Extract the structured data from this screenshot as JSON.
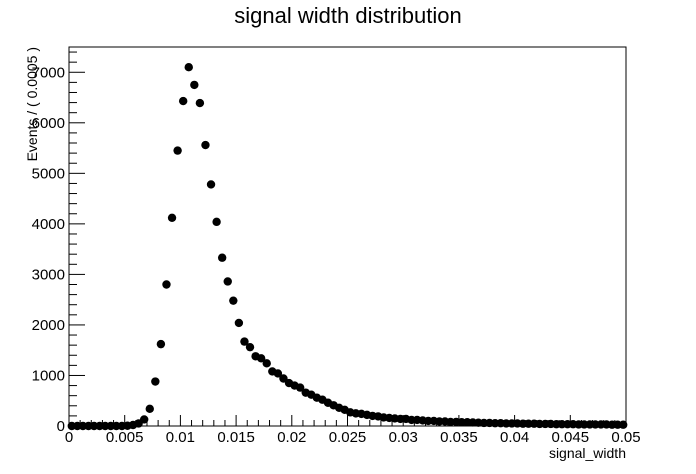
{
  "chart_data": {
    "type": "scatter",
    "title": "signal width distribution",
    "xlabel": "signal_width",
    "ylabel": "Events / ( 0.0005 )",
    "xlim": [
      0,
      0.05
    ],
    "ylim": [
      0,
      7500
    ],
    "x_ticks": [
      "0",
      "0.005",
      "0.01",
      "0.015",
      "0.02",
      "0.025",
      "0.03",
      "0.035",
      "0.04",
      "0.045",
      "0.05"
    ],
    "y_ticks": [
      "0",
      "1000",
      "2000",
      "3000",
      "4000",
      "5000",
      "6000",
      "7000"
    ],
    "grid": false,
    "marker_color": "#000000",
    "x": [
      0.00025,
      0.00075,
      0.00125,
      0.00175,
      0.00225,
      0.00275,
      0.00325,
      0.00375,
      0.00425,
      0.00475,
      0.00525,
      0.00575,
      0.00625,
      0.00675,
      0.00725,
      0.00775,
      0.00825,
      0.00875,
      0.00925,
      0.00975,
      0.01025,
      0.01075,
      0.01125,
      0.01175,
      0.01225,
      0.01275,
      0.01325,
      0.01375,
      0.01425,
      0.01475,
      0.01525,
      0.01575,
      0.01625,
      0.01675,
      0.01725,
      0.01775,
      0.01825,
      0.01875,
      0.01925,
      0.01975,
      0.02025,
      0.02075,
      0.02125,
      0.02175,
      0.02225,
      0.02275,
      0.02325,
      0.02375,
      0.02425,
      0.02475,
      0.02525,
      0.02575,
      0.02625,
      0.02675,
      0.02725,
      0.02775,
      0.02825,
      0.02875,
      0.02925,
      0.02975,
      0.03025,
      0.03075,
      0.03125,
      0.03175,
      0.03225,
      0.03275,
      0.03325,
      0.03375,
      0.03425,
      0.03475,
      0.03525,
      0.03575,
      0.03625,
      0.03675,
      0.03725,
      0.03775,
      0.03825,
      0.03875,
      0.03925,
      0.03975,
      0.04025,
      0.04075,
      0.04125,
      0.04175,
      0.04225,
      0.04275,
      0.04325,
      0.04375,
      0.04425,
      0.04475,
      0.04525,
      0.04575,
      0.04625,
      0.04675,
      0.04725,
      0.04775,
      0.04825,
      0.04875,
      0.04925,
      0.04975
    ],
    "y": [
      0,
      0,
      0,
      0,
      0,
      0,
      0,
      0,
      0,
      0,
      5,
      20,
      50,
      130,
      340,
      880,
      1620,
      2800,
      4120,
      5450,
      6430,
      7100,
      6750,
      6390,
      5560,
      4780,
      4040,
      3330,
      2860,
      2480,
      2040,
      1670,
      1560,
      1380,
      1340,
      1240,
      1080,
      1040,
      940,
      850,
      800,
      760,
      660,
      620,
      560,
      520,
      460,
      410,
      360,
      320,
      270,
      250,
      240,
      220,
      200,
      190,
      170,
      160,
      150,
      140,
      140,
      120,
      120,
      110,
      100,
      100,
      90,
      90,
      80,
      80,
      75,
      75,
      70,
      65,
      60,
      60,
      55,
      55,
      50,
      50,
      50,
      45,
      45,
      45,
      40,
      40,
      40,
      35,
      35,
      35,
      35,
      30,
      30,
      30,
      30,
      30,
      30,
      25,
      25,
      25
    ]
  }
}
